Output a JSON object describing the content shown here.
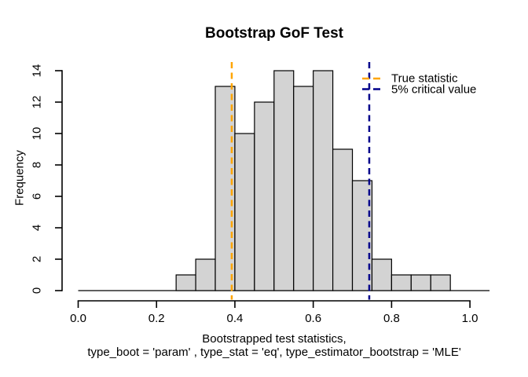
{
  "chart_data": {
    "type": "histogram",
    "title": "Bootstrap GoF Test",
    "ylabel": "Frequency",
    "xlabel_line1": "Bootstrapped test statistics,",
    "xlabel_line2": "type_boot = 'param' , type_stat = 'eq', type_estimator_bootstrap = 'MLE'",
    "bin_width": 0.05,
    "bin_starts": [
      0,
      0.05,
      0.1,
      0.15,
      0.2,
      0.25,
      0.3,
      0.35,
      0.4,
      0.45,
      0.5,
      0.55,
      0.6,
      0.65,
      0.7,
      0.75,
      0.8,
      0.85,
      0.9,
      0.95,
      1.0
    ],
    "counts": [
      0,
      0,
      0,
      0,
      0,
      1,
      2,
      13,
      10,
      12,
      14,
      13,
      14,
      9,
      7,
      2,
      1,
      1,
      1,
      0,
      0
    ],
    "total_count": 100,
    "break_min": 0,
    "break_max": 1.05,
    "xlim": [
      0,
      1
    ],
    "ylim": [
      0,
      14
    ],
    "x_ticks": [
      0,
      0.2,
      0.4,
      0.6,
      0.8,
      1
    ],
    "x_tick_labels": [
      "0.0",
      "0.2",
      "0.4",
      "0.6",
      "0.8",
      "1.0"
    ],
    "y_ticks": [
      0,
      2,
      4,
      6,
      8,
      10,
      12,
      14
    ],
    "y_tick_labels": [
      "0",
      "2",
      "4",
      "6",
      "8",
      "10",
      "12",
      "14"
    ],
    "grid": "off",
    "bar_fill": "#D3D3D3",
    "bar_stroke": "#000000",
    "axis_color": "#000000",
    "vlines": [
      {
        "name": "true-statistic",
        "value": 0.392,
        "color": "#FFA500",
        "linetype": "dashed",
        "label": "True statistic"
      },
      {
        "name": "critical-value-5pct",
        "value": 0.743,
        "color": "#00008B",
        "linetype": "dashed",
        "label": "5% critical value"
      }
    ],
    "legend": {
      "position": "topright",
      "border": "none",
      "items": [
        {
          "label": "True statistic",
          "color": "#FFA500"
        },
        {
          "label": "5% critical value",
          "color": "#00008B"
        }
      ]
    }
  }
}
